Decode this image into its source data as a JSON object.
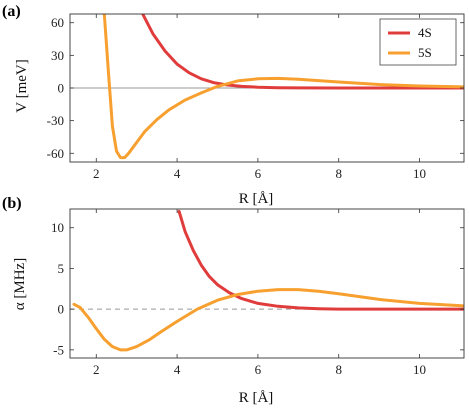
{
  "chart_data": [
    {
      "type": "line",
      "panel_label": "(a)",
      "xlabel": "R [Å]",
      "ylabel": "V [meV]",
      "xlim": [
        1.35,
        11.1
      ],
      "ylim": [
        -68,
        68
      ],
      "xticks": [
        2,
        4,
        6,
        8,
        10
      ],
      "yticks": [
        -60,
        -30,
        0,
        30,
        60
      ],
      "ytick_labels": [
        "-60",
        "-30",
        "0",
        "30",
        "60"
      ],
      "grid": false,
      "zero_line": {
        "style": "solid",
        "color": "#999999"
      },
      "legend": {
        "placement": "top-right"
      },
      "series": [
        {
          "name": "4S",
          "color": "#e03c3c",
          "x": [
            3.15,
            3.4,
            3.7,
            4.0,
            4.3,
            4.6,
            4.9,
            5.2,
            5.6,
            6.0,
            6.5,
            7.0,
            8.0,
            9.0,
            10.0,
            11.1
          ],
          "y": [
            68,
            50,
            34,
            22,
            14,
            8.5,
            5,
            3,
            1.5,
            0.7,
            0.3,
            0.1,
            0,
            0,
            0,
            0
          ]
        },
        {
          "name": "5S",
          "color": "#f7a030",
          "x": [
            2.2,
            2.3,
            2.4,
            2.5,
            2.6,
            2.7,
            2.8,
            3.0,
            3.2,
            3.5,
            3.8,
            4.2,
            4.6,
            5.0,
            5.5,
            6.0,
            6.5,
            7.0,
            8.0,
            9.0,
            10.0,
            11.1
          ],
          "y": [
            68,
            15,
            -35,
            -58,
            -64,
            -64,
            -60,
            -50,
            -40,
            -29,
            -20,
            -11,
            -4.5,
            1.5,
            6.5,
            8.5,
            8.8,
            8,
            5.5,
            3.2,
            1.8,
            1
          ]
        }
      ]
    },
    {
      "type": "line",
      "panel_label": "(b)",
      "xlabel": "R [Å]",
      "ylabel": "α [MHz]",
      "xlim": [
        1.35,
        11.1
      ],
      "ylim": [
        -6,
        12.3
      ],
      "xticks": [
        2,
        4,
        6,
        8,
        10
      ],
      "yticks": [
        -5,
        0,
        5,
        10
      ],
      "ytick_labels": [
        "-5",
        "0",
        "5",
        "10"
      ],
      "grid": false,
      "zero_line": {
        "style": "dashed",
        "color": "#999999"
      },
      "series": [
        {
          "name": "",
          "color": "#e03c3c",
          "x": [
            4.05,
            4.2,
            4.4,
            4.6,
            4.8,
            5.0,
            5.3,
            5.6,
            6.0,
            6.5,
            7.0,
            7.5,
            8.0,
            9.0,
            10.0,
            11.1
          ],
          "y": [
            12,
            9.5,
            7.2,
            5.4,
            4.0,
            3.0,
            2.0,
            1.3,
            0.7,
            0.35,
            0.15,
            0.05,
            0,
            0,
            0,
            0
          ]
        },
        {
          "name": "",
          "color": "#f7a030",
          "x": [
            1.45,
            1.6,
            1.8,
            2.0,
            2.2,
            2.4,
            2.6,
            2.75,
            3.0,
            3.3,
            3.6,
            4.0,
            4.5,
            5.0,
            5.5,
            6.0,
            6.5,
            7.0,
            7.5,
            8.0,
            9.0,
            10.0,
            11.1
          ],
          "y": [
            0.6,
            0.2,
            -1.0,
            -2.4,
            -3.7,
            -4.6,
            -5.0,
            -5.0,
            -4.6,
            -3.8,
            -2.8,
            -1.5,
            0,
            1.1,
            1.8,
            2.2,
            2.4,
            2.4,
            2.2,
            1.9,
            1.2,
            0.7,
            0.4
          ]
        }
      ]
    }
  ]
}
